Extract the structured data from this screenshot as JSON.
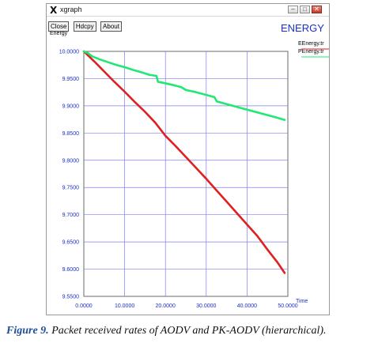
{
  "window": {
    "title": "xgraph",
    "app_icon": "X",
    "controls": [
      "minimize-icon",
      "maximize-icon",
      "close-icon"
    ]
  },
  "toolbar": {
    "close_label": "Close",
    "hdcpy_label": "Hdcpy",
    "about_label": "About"
  },
  "chart_data": {
    "type": "line",
    "title": "ENERGY",
    "ylabel": "Energy",
    "xlabel": "Time",
    "xlim": [
      0,
      50
    ],
    "ylim": [
      9.55,
      10.0
    ],
    "x_ticks": [
      "0.0000",
      "10.0000",
      "20.0000",
      "30.0000",
      "40.0000",
      "50.0000"
    ],
    "x_tick_values": [
      0,
      10,
      20,
      30,
      40,
      50
    ],
    "y_ticks": [
      "10.0000",
      "9.9500",
      "9.9000",
      "9.8500",
      "9.8000",
      "9.7500",
      "9.7000",
      "9.6500",
      "9.6000",
      "9.5500"
    ],
    "y_tick_values": [
      10.0,
      9.95,
      9.9,
      9.85,
      9.8,
      9.75,
      9.7,
      9.65,
      9.6,
      9.55
    ],
    "grid": true,
    "legend_position": "top-right",
    "series": [
      {
        "name": "EEnergy.tr",
        "color": "#e02020",
        "x": [
          0,
          2.5,
          5,
          7.5,
          10,
          12.5,
          15,
          17.5,
          20,
          22.5,
          25,
          27.5,
          30,
          32.5,
          35,
          37.5,
          40,
          42.5,
          45,
          47.5,
          49.2
        ],
        "y": [
          10.0,
          9.982,
          9.963,
          9.944,
          9.926,
          9.907,
          9.889,
          9.869,
          9.845,
          9.826,
          9.806,
          9.786,
          9.766,
          9.745,
          9.724,
          9.703,
          9.682,
          9.661,
          9.636,
          9.612,
          9.593
        ]
      },
      {
        "name": "PEnergy.tr",
        "color": "#20e870",
        "x": [
          0,
          1,
          2,
          4,
          6,
          8,
          10,
          12,
          14,
          16,
          17.8,
          18.2,
          19,
          22,
          24,
          25,
          27,
          30,
          32,
          32.6,
          35,
          38,
          41,
          44,
          47,
          49.2
        ],
        "y": [
          10.0,
          9.997,
          9.991,
          9.985,
          9.98,
          9.975,
          9.971,
          9.966,
          9.962,
          9.957,
          9.955,
          9.944,
          9.943,
          9.938,
          9.934,
          9.929,
          9.926,
          9.92,
          9.916,
          9.908,
          9.903,
          9.897,
          9.891,
          9.885,
          9.879,
          9.874
        ]
      }
    ]
  },
  "caption": {
    "label": "Figure 9.",
    "text": "Packet received rates of AODV and PK-AODV (hierarchical)."
  }
}
